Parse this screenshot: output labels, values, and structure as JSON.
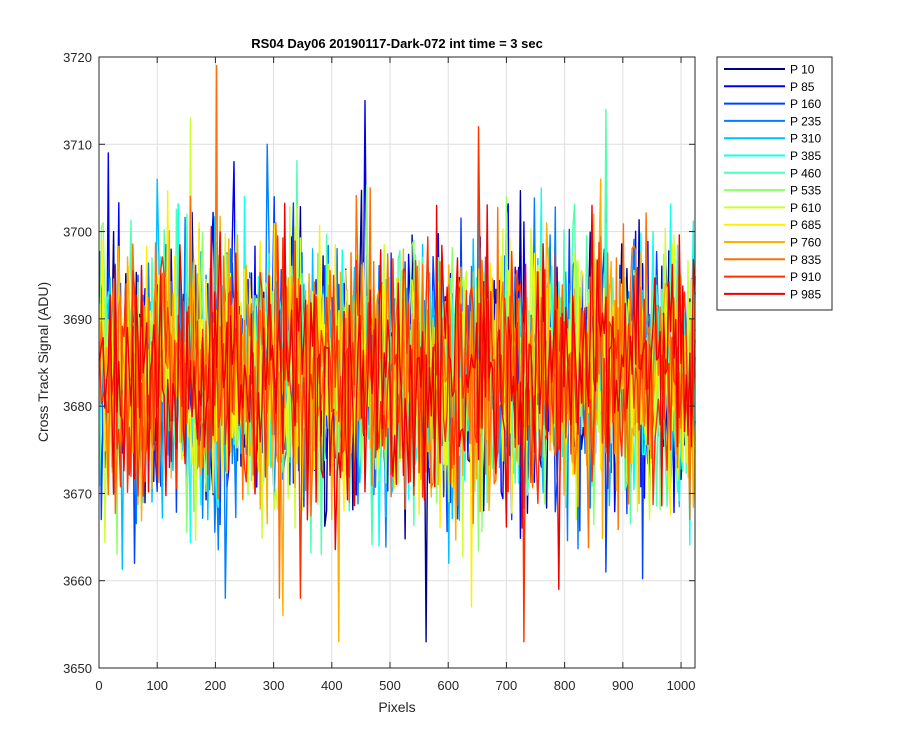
{
  "chart_data": {
    "type": "line",
    "title": "RS04 Day06 20190117-Dark-072 int time = 3 sec",
    "xlabel": "Pixels",
    "ylabel": "Cross Track Signal (ADU)",
    "xlim": [
      0,
      1024
    ],
    "ylim": [
      3650,
      3720
    ],
    "xticks": [
      0,
      100,
      200,
      300,
      400,
      500,
      600,
      700,
      800,
      900,
      1000
    ],
    "yticks": [
      3650,
      3660,
      3670,
      3680,
      3690,
      3700,
      3710,
      3720
    ],
    "grid": true,
    "legend_position": "outside-top-right",
    "noise_baseline": 3684,
    "noise_typical_range": [
      3670,
      3700
    ],
    "series": [
      {
        "name": "P 10",
        "color": "#00008F",
        "peaks": [
          [
            560,
            3653
          ],
          [
            25,
            3700
          ],
          [
            660,
            3668
          ]
        ]
      },
      {
        "name": "P 85",
        "color": "#0000EF",
        "peaks": [
          [
            455,
            3715
          ],
          [
            15,
            3709
          ],
          [
            230,
            3708
          ]
        ]
      },
      {
        "name": "P 160",
        "color": "#0040FF",
        "peaks": [
          [
            60,
            3662
          ],
          [
            870,
            3661
          ],
          [
            300,
            3704
          ]
        ]
      },
      {
        "name": "P 235",
        "color": "#0080FF",
        "peaks": [
          [
            287,
            3710
          ],
          [
            215,
            3658
          ],
          [
            640,
            3696
          ]
        ]
      },
      {
        "name": "P 310",
        "color": "#00BFFF",
        "peaks": [
          [
            100,
            3706
          ],
          [
            600,
            3662
          ],
          [
            860,
            3703
          ]
        ]
      },
      {
        "name": "P 385",
        "color": "#10FFEF",
        "peaks": [
          [
            760,
            3705
          ],
          [
            480,
            3664
          ],
          [
            950,
            3700
          ]
        ]
      },
      {
        "name": "P 460",
        "color": "#50FFAF",
        "peaks": [
          [
            870,
            3714
          ],
          [
            380,
            3663
          ],
          [
            150,
            3702
          ]
        ]
      },
      {
        "name": "P 535",
        "color": "#8FFF70",
        "peaks": [
          [
            30,
            3663
          ],
          [
            700,
            3704
          ],
          [
            540,
            3699
          ]
        ]
      },
      {
        "name": "P 610",
        "color": "#CFFF30",
        "peaks": [
          [
            157,
            3713
          ],
          [
            340,
            3703
          ],
          [
            820,
            3667
          ]
        ]
      },
      {
        "name": "P 685",
        "color": "#FFEF00",
        "peaks": [
          [
            640,
            3657
          ],
          [
            170,
            3701
          ],
          [
            420,
            3668
          ]
        ]
      },
      {
        "name": "P 760",
        "color": "#FFAF00",
        "peaks": [
          [
            410,
            3653
          ],
          [
            315,
            3656
          ],
          [
            860,
            3706
          ]
        ]
      },
      {
        "name": "P 835",
        "color": "#FF7000",
        "peaks": [
          [
            200,
            3720
          ],
          [
            310,
            3658
          ],
          [
            465,
            3705
          ]
        ]
      },
      {
        "name": "P 910",
        "color": "#FF3000",
        "peaks": [
          [
            730,
            3653
          ],
          [
            650,
            3712
          ],
          [
            345,
            3658
          ]
        ]
      },
      {
        "name": "P 985",
        "color": "#EF0000",
        "peaks": [
          [
            790,
            3659
          ],
          [
            580,
            3703
          ],
          [
            100,
            3672
          ]
        ]
      }
    ]
  }
}
